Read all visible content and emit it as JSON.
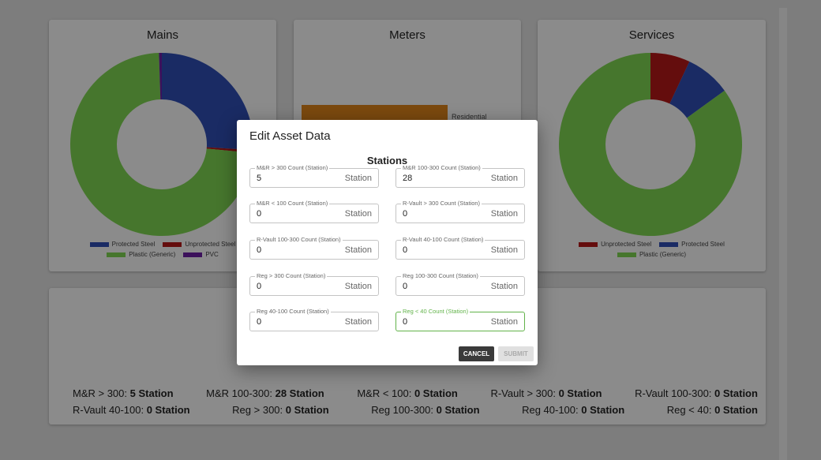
{
  "background": {
    "cards": [
      {
        "title": "Mains",
        "segments": [
          {
            "name": "Protected Steel",
            "color": "#2f4cb0",
            "value": 26
          },
          {
            "name": "Unprotected Steel",
            "color": "#b01818",
            "value": 0.5
          },
          {
            "name": "Plastic (Generic)",
            "color": "#7cd050",
            "value": 73
          },
          {
            "name": "PVC",
            "color": "#6a1fa0",
            "value": 0.5
          }
        ]
      },
      {
        "title": "Meters",
        "bar_label": "Residential"
      },
      {
        "title": "Services",
        "segments": [
          {
            "name": "Unprotected Steel",
            "color": "#b01818",
            "value": 7
          },
          {
            "name": "Protected Steel",
            "color": "#2f4cb0",
            "value": 8
          },
          {
            "name": "Plastic (Generic)",
            "color": "#7cd050",
            "value": 85
          }
        ]
      }
    ],
    "summary": [
      [
        {
          "label": "M&R > 300:",
          "value": "5 Station"
        },
        {
          "label": "M&R 100-300:",
          "value": "28 Station"
        },
        {
          "label": "M&R < 100:",
          "value": "0 Station"
        },
        {
          "label": "R-Vault > 300:",
          "value": "0 Station"
        },
        {
          "label": "R-Vault 100-300:",
          "value": "0 Station"
        }
      ],
      [
        {
          "label": "R-Vault 40-100:",
          "value": "0 Station"
        },
        {
          "label": "Reg > 300:",
          "value": "0 Station"
        },
        {
          "label": "Reg 100-300:",
          "value": "0 Station"
        },
        {
          "label": "Reg 40-100:",
          "value": "0 Station"
        },
        {
          "label": "Reg < 40:",
          "value": "0 Station"
        }
      ]
    ]
  },
  "dialog": {
    "title": "Edit Asset Data",
    "section": "Stations",
    "fields": [
      {
        "label": "M&R > 300 Count (Station)",
        "value": "5",
        "unit": "Station"
      },
      {
        "label": "M&R 100-300 Count (Station)",
        "value": "28",
        "unit": "Station"
      },
      {
        "label": "M&R < 100 Count (Station)",
        "value": "0",
        "unit": "Station"
      },
      {
        "label": "R-Vault > 300 Count (Station)",
        "value": "0",
        "unit": "Station"
      },
      {
        "label": "R-Vault 100-300 Count (Station)",
        "value": "0",
        "unit": "Station"
      },
      {
        "label": "R-Vault 40-100 Count (Station)",
        "value": "0",
        "unit": "Station"
      },
      {
        "label": "Reg > 300 Count (Station)",
        "value": "0",
        "unit": "Station"
      },
      {
        "label": "Reg 100-300 Count (Station)",
        "value": "0",
        "unit": "Station"
      },
      {
        "label": "Reg 40-100 Count (Station)",
        "value": "0",
        "unit": "Station"
      },
      {
        "label": "Reg < 40 Count (Station)",
        "value": "0",
        "unit": "Station"
      }
    ],
    "buttons": {
      "cancel": "CANCEL",
      "submit": "SUBMIT"
    }
  }
}
